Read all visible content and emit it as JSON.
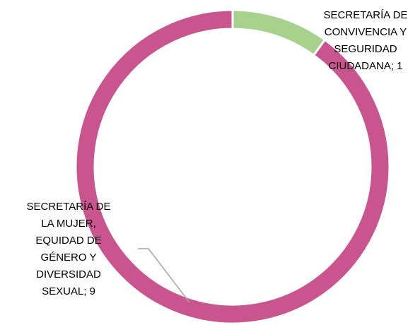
{
  "chart_data": {
    "type": "donut",
    "values": [
      1,
      9
    ],
    "value_labels": [
      "SECRETARÍA DE CONVIVENCIA Y SEGURIDAD CIUDADANA; 1",
      "SECRETARÍA DE LA MUJER, EQUIDAD DE GÉNERO Y DIVERSIDAD SEXUAL; 9"
    ],
    "colors": [
      "#a9d18e",
      "#c9558e"
    ]
  }
}
